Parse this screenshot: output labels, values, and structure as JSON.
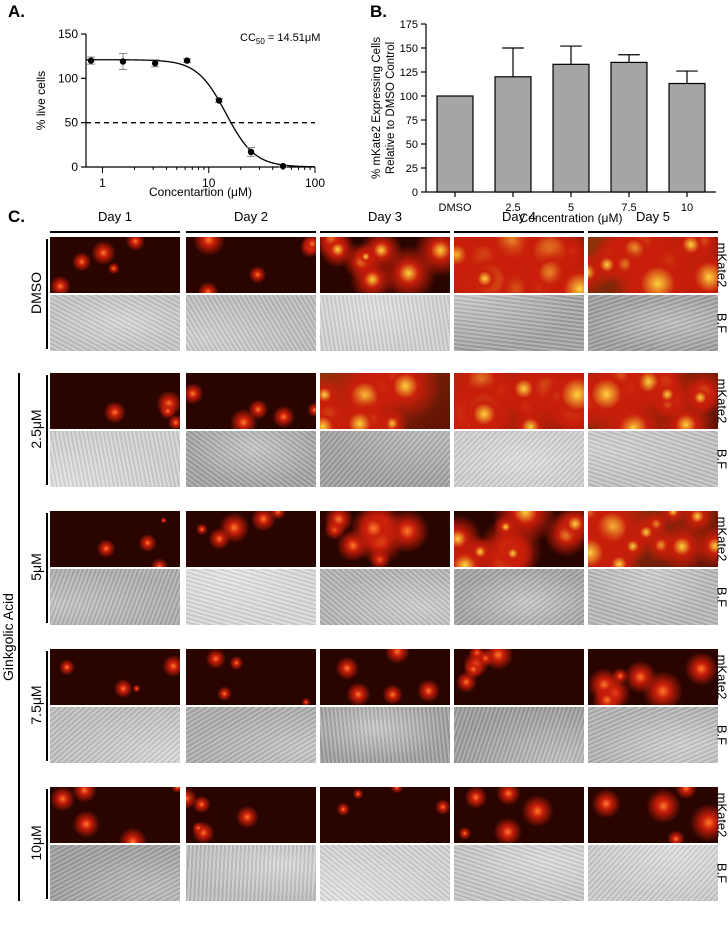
{
  "panel_labels": {
    "a": "A.",
    "b": "B.",
    "c": "C."
  },
  "cc50_label": {
    "main": "CC",
    "sub": "50",
    "rest": " = 14.51μM"
  },
  "chart_data": [
    {
      "panel": "A.",
      "type": "scatter",
      "xscale": "log",
      "xlim": [
        0.7,
        100
      ],
      "ylim": [
        0,
        150
      ],
      "xticks": [
        1,
        10,
        100
      ],
      "yticks": [
        0,
        50,
        100,
        150
      ],
      "xlabel": "Concentartion (μM)",
      "ylabel": "% live cells",
      "points": [
        {
          "x": 0.78,
          "y": 120,
          "err": 4
        },
        {
          "x": 1.56,
          "y": 119,
          "err": 9
        },
        {
          "x": 3.13,
          "y": 117,
          "err": 4
        },
        {
          "x": 6.25,
          "y": 120,
          "err": 2
        },
        {
          "x": 12.5,
          "y": 75,
          "err": 2
        },
        {
          "x": 25,
          "y": 17,
          "err": 5
        },
        {
          "x": 50,
          "y": 1,
          "err": 1
        }
      ],
      "fit": {
        "top": 121,
        "bottom": 0,
        "ec50": 14.51,
        "hill": 3.2
      },
      "reference_line": {
        "y": 50,
        "style": "dashed"
      },
      "grid": false
    },
    {
      "panel": "B.",
      "type": "bar",
      "categories": [
        "DMSO",
        "2.5",
        "5",
        "7.5",
        "10"
      ],
      "values": [
        100,
        120,
        133,
        135,
        113
      ],
      "errors": [
        0,
        30,
        19,
        8,
        13
      ],
      "ylim": [
        0,
        175
      ],
      "yticks": [
        0,
        25,
        50,
        75,
        100,
        125,
        150,
        175
      ],
      "xlabel": "Concentration (μM)",
      "ylabel_lines": [
        "% mKate2 Expressing Cells",
        "Relative to DMSO Control"
      ],
      "bar_color": "#a5a5a5",
      "grid": false
    }
  ],
  "grid_panel": {
    "days": [
      "Day 1",
      "Day 2",
      "Day 3",
      "Day 4",
      "Day 5"
    ],
    "group_label": "Ginkgolic Acid",
    "channel_labels": [
      "mKate2",
      "B.F"
    ],
    "rows": [
      {
        "condition": "DMSO",
        "intensity": [
          0.15,
          0.2,
          0.45,
          0.9,
          1.0
        ]
      },
      {
        "condition": "2.5μM",
        "intensity": [
          0.12,
          0.2,
          0.75,
          0.85,
          0.8
        ]
      },
      {
        "condition": "5μM",
        "intensity": [
          0.05,
          0.18,
          0.4,
          0.65,
          0.75
        ]
      },
      {
        "condition": "7.5μM",
        "intensity": [
          0.1,
          0.12,
          0.15,
          0.25,
          0.3
        ]
      },
      {
        "condition": "10μM",
        "intensity": [
          0.15,
          0.15,
          0.12,
          0.2,
          0.25
        ]
      }
    ],
    "colors": {
      "fluor_bg": "#2a0500",
      "fluor_mid": "#c81e0a",
      "fluor_hi": "#ffd23c",
      "bf_light": "#d8d8d8",
      "bf_dark": "#8a8a8a"
    }
  }
}
